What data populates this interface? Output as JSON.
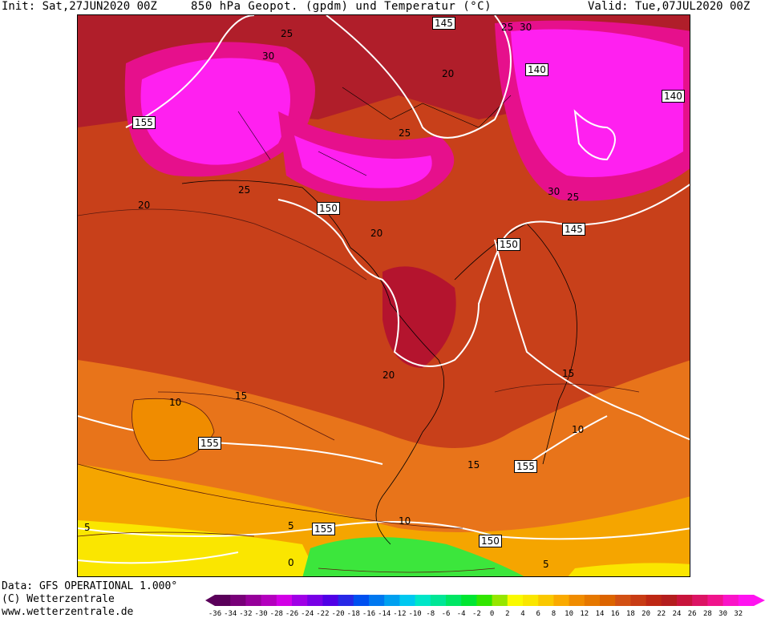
{
  "header": {
    "init": "Init: Sat,27JUN2020 00Z",
    "title": "850 hPa Geopot. (gpdm) und Temperatur (°C)",
    "valid": "Valid: Tue,07JUL2020 00Z"
  },
  "footer": {
    "data_source": "Data: GFS OPERATIONAL 1.000°",
    "copyright": "(C) Wetterzentrale",
    "url": "www.wetterzentrale.de"
  },
  "map": {
    "geopotential_labels": [
      "145",
      "140",
      "140",
      "155",
      "150",
      "145",
      "150",
      "155",
      "155",
      "155",
      "150"
    ],
    "temperature_labels": [
      "25",
      "30",
      "20",
      "25",
      "25",
      "30",
      "20",
      "25",
      "30",
      "25",
      "20",
      "20",
      "15",
      "15",
      "10",
      "10",
      "15",
      "10",
      "5",
      "5",
      "5",
      "0"
    ]
  },
  "legend": {
    "ticks": [
      "-36",
      "-34",
      "-32",
      "-30",
      "-28",
      "-26",
      "-24",
      "-22",
      "-20",
      "-18",
      "-16",
      "-14",
      "-12",
      "-10",
      "-8",
      "-6",
      "-4",
      "-2",
      "0",
      "2",
      "4",
      "6",
      "8",
      "10",
      "12",
      "14",
      "16",
      "18",
      "20",
      "22",
      "24",
      "26",
      "28",
      "30",
      "32"
    ],
    "colors": [
      "#5a005a",
      "#780078",
      "#96009a",
      "#b400be",
      "#d200e6",
      "#a000e6",
      "#7800e6",
      "#5000e6",
      "#2828e6",
      "#0050f0",
      "#0078f0",
      "#00a0f0",
      "#00c8f0",
      "#00e6c8",
      "#00e696",
      "#00e664",
      "#00e632",
      "#32e600",
      "#96e600",
      "#fafa00",
      "#fae600",
      "#fac800",
      "#faaa00",
      "#f08c00",
      "#e67800",
      "#dc6400",
      "#d25014",
      "#c83c14",
      "#be2814",
      "#b41e1e",
      "#c8143c",
      "#dc1464",
      "#f0148c",
      "#fa14c8",
      "#ff14f0"
    ]
  }
}
